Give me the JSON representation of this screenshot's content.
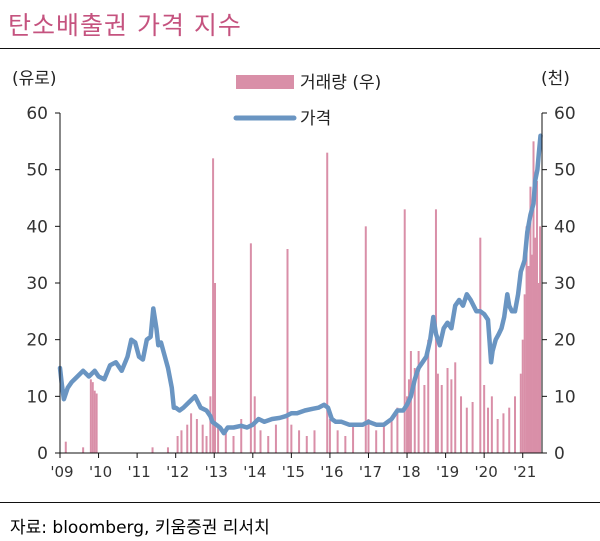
{
  "title": "탄소배출권 가격 지수",
  "source": "자료: bloomberg, 키움증권 리서치",
  "chart_data": {
    "type": "bar+line",
    "left_unit": "(유로)",
    "right_unit": "(천)",
    "ylim_left": [
      0,
      60
    ],
    "ylim_right": [
      0,
      60
    ],
    "yticks": [
      0,
      10,
      20,
      30,
      40,
      50,
      60
    ],
    "x_tick_labels": [
      "'09",
      "'10",
      "'11",
      "'12",
      "'13",
      "'14",
      "'15",
      "'16",
      "'17",
      "'18",
      "'19",
      "'20",
      "'21"
    ],
    "x_tick_years": [
      2009,
      2010,
      2011,
      2012,
      2013,
      2014,
      2015,
      2016,
      2017,
      2018,
      2019,
      2020,
      2021
    ],
    "xlim": [
      2009.0,
      2021.5
    ],
    "grid": false,
    "legend_position": "top-center",
    "colors": {
      "volume": "#d98fa8",
      "price": "#6a95c2",
      "title": "#c5537f"
    },
    "series": [
      {
        "name": "가격",
        "axis": "left",
        "type": "line",
        "points": [
          [
            2009.0,
            15
          ],
          [
            2009.05,
            12
          ],
          [
            2009.1,
            9.5
          ],
          [
            2009.2,
            11.5
          ],
          [
            2009.3,
            12.5
          ],
          [
            2009.45,
            13.5
          ],
          [
            2009.6,
            14.5
          ],
          [
            2009.75,
            13.5
          ],
          [
            2009.9,
            14.5
          ],
          [
            2010.0,
            13.5
          ],
          [
            2010.15,
            13
          ],
          [
            2010.3,
            15.5
          ],
          [
            2010.45,
            16
          ],
          [
            2010.6,
            14.5
          ],
          [
            2010.75,
            17
          ],
          [
            2010.85,
            20
          ],
          [
            2010.95,
            19.5
          ],
          [
            2011.05,
            17
          ],
          [
            2011.15,
            16.5
          ],
          [
            2011.25,
            20
          ],
          [
            2011.35,
            20.5
          ],
          [
            2011.42,
            25.5
          ],
          [
            2011.5,
            22
          ],
          [
            2011.55,
            19
          ],
          [
            2011.62,
            19.5
          ],
          [
            2011.7,
            17.5
          ],
          [
            2011.8,
            15
          ],
          [
            2011.9,
            11.5
          ],
          [
            2011.95,
            8
          ],
          [
            2012.0,
            8
          ],
          [
            2012.1,
            7.5
          ],
          [
            2012.2,
            8
          ],
          [
            2012.35,
            9
          ],
          [
            2012.5,
            10
          ],
          [
            2012.65,
            8
          ],
          [
            2012.8,
            7.5
          ],
          [
            2012.9,
            6.5
          ],
          [
            2012.95,
            5.5
          ],
          [
            2013.05,
            5
          ],
          [
            2013.15,
            4.5
          ],
          [
            2013.25,
            3.5
          ],
          [
            2013.35,
            4.5
          ],
          [
            2013.5,
            4.5
          ],
          [
            2013.7,
            4.8
          ],
          [
            2013.85,
            4.5
          ],
          [
            2014.0,
            5
          ],
          [
            2014.15,
            6
          ],
          [
            2014.3,
            5.5
          ],
          [
            2014.5,
            6
          ],
          [
            2014.7,
            6.2
          ],
          [
            2014.85,
            6.5
          ],
          [
            2015.0,
            7
          ],
          [
            2015.15,
            7
          ],
          [
            2015.35,
            7.5
          ],
          [
            2015.55,
            7.8
          ],
          [
            2015.7,
            8
          ],
          [
            2015.85,
            8.5
          ],
          [
            2015.95,
            8
          ],
          [
            2016.05,
            6
          ],
          [
            2016.15,
            5.5
          ],
          [
            2016.3,
            5.5
          ],
          [
            2016.5,
            5
          ],
          [
            2016.7,
            5
          ],
          [
            2016.85,
            5
          ],
          [
            2017.0,
            5.5
          ],
          [
            2017.2,
            5
          ],
          [
            2017.4,
            5
          ],
          [
            2017.6,
            6
          ],
          [
            2017.75,
            7.5
          ],
          [
            2017.9,
            7.5
          ],
          [
            2018.0,
            8.5
          ],
          [
            2018.1,
            10
          ],
          [
            2018.2,
            13
          ],
          [
            2018.3,
            15
          ],
          [
            2018.4,
            16
          ],
          [
            2018.5,
            17
          ],
          [
            2018.6,
            20
          ],
          [
            2018.68,
            24
          ],
          [
            2018.75,
            21
          ],
          [
            2018.85,
            19
          ],
          [
            2018.95,
            22
          ],
          [
            2019.05,
            23
          ],
          [
            2019.15,
            22
          ],
          [
            2019.25,
            26
          ],
          [
            2019.35,
            27
          ],
          [
            2019.45,
            26
          ],
          [
            2019.55,
            28
          ],
          [
            2019.65,
            27
          ],
          [
            2019.8,
            25
          ],
          [
            2019.9,
            25
          ],
          [
            2020.0,
            24.5
          ],
          [
            2020.1,
            23.5
          ],
          [
            2020.18,
            16
          ],
          [
            2020.22,
            18
          ],
          [
            2020.3,
            20
          ],
          [
            2020.38,
            21
          ],
          [
            2020.45,
            22
          ],
          [
            2020.52,
            24
          ],
          [
            2020.6,
            28
          ],
          [
            2020.65,
            26
          ],
          [
            2020.72,
            25
          ],
          [
            2020.8,
            25
          ],
          [
            2020.88,
            28
          ],
          [
            2020.95,
            32
          ],
          [
            2021.05,
            34
          ],
          [
            2021.12,
            39
          ],
          [
            2021.2,
            42
          ],
          [
            2021.28,
            44
          ],
          [
            2021.32,
            48
          ],
          [
            2021.38,
            50
          ],
          [
            2021.42,
            53
          ],
          [
            2021.46,
            56
          ]
        ]
      },
      {
        "name": "거래량 (우)",
        "axis": "right",
        "type": "bar",
        "points": [
          [
            2009.15,
            2
          ],
          [
            2009.6,
            1
          ],
          [
            2009.8,
            13
          ],
          [
            2009.85,
            12.5
          ],
          [
            2009.9,
            11
          ],
          [
            2009.95,
            10.5
          ],
          [
            2011.4,
            1
          ],
          [
            2011.8,
            1
          ],
          [
            2012.05,
            3
          ],
          [
            2012.15,
            4
          ],
          [
            2012.3,
            5
          ],
          [
            2012.4,
            7
          ],
          [
            2012.55,
            6
          ],
          [
            2012.7,
            5
          ],
          [
            2012.8,
            3
          ],
          [
            2012.9,
            10
          ],
          [
            2012.97,
            52
          ],
          [
            2013.02,
            30
          ],
          [
            2013.1,
            5
          ],
          [
            2013.3,
            4
          ],
          [
            2013.5,
            3
          ],
          [
            2013.7,
            6
          ],
          [
            2013.95,
            37
          ],
          [
            2014.05,
            10
          ],
          [
            2014.2,
            4
          ],
          [
            2014.4,
            3
          ],
          [
            2014.6,
            5
          ],
          [
            2014.9,
            36
          ],
          [
            2015.0,
            5
          ],
          [
            2015.2,
            4
          ],
          [
            2015.4,
            3
          ],
          [
            2015.6,
            4
          ],
          [
            2015.93,
            53
          ],
          [
            2016.0,
            6
          ],
          [
            2016.2,
            4
          ],
          [
            2016.4,
            3
          ],
          [
            2016.6,
            5
          ],
          [
            2016.93,
            40
          ],
          [
            2017.0,
            6
          ],
          [
            2017.2,
            4
          ],
          [
            2017.4,
            5
          ],
          [
            2017.6,
            6
          ],
          [
            2017.75,
            8
          ],
          [
            2017.94,
            43
          ],
          [
            2018.0,
            10
          ],
          [
            2018.05,
            13
          ],
          [
            2018.1,
            18
          ],
          [
            2018.2,
            15
          ],
          [
            2018.3,
            18
          ],
          [
            2018.45,
            12
          ],
          [
            2018.55,
            20
          ],
          [
            2018.75,
            43
          ],
          [
            2018.8,
            14
          ],
          [
            2018.9,
            12
          ],
          [
            2019.05,
            15
          ],
          [
            2019.15,
            13
          ],
          [
            2019.25,
            16
          ],
          [
            2019.4,
            10
          ],
          [
            2019.55,
            8
          ],
          [
            2019.7,
            9
          ],
          [
            2019.9,
            38
          ],
          [
            2020.0,
            12
          ],
          [
            2020.1,
            8
          ],
          [
            2020.2,
            10
          ],
          [
            2020.35,
            6
          ],
          [
            2020.5,
            7
          ],
          [
            2020.65,
            8
          ],
          [
            2020.8,
            10
          ],
          [
            2020.95,
            14
          ],
          [
            2021.0,
            20
          ],
          [
            2021.05,
            28
          ],
          [
            2021.1,
            40
          ],
          [
            2021.15,
            33
          ],
          [
            2021.2,
            47
          ],
          [
            2021.23,
            35
          ],
          [
            2021.28,
            55
          ],
          [
            2021.33,
            38
          ],
          [
            2021.37,
            48
          ],
          [
            2021.42,
            30
          ],
          [
            2021.45,
            40
          ]
        ]
      }
    ]
  }
}
